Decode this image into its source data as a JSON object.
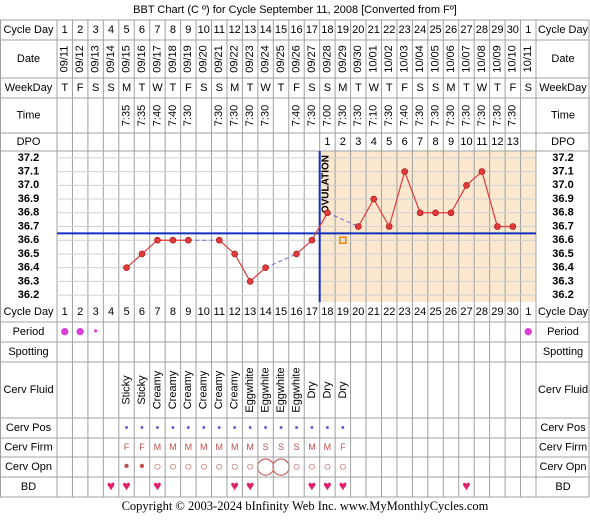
{
  "title": "BBT Chart (C º) for Cycle September 11, 2008  [Converted from Fº]",
  "copyright": "Copyright © 2003-2024 bInfinity Web Inc.     www.MyMonthlyCycles.com",
  "row_labels": {
    "cycle_day": "Cycle Day",
    "date": "Date",
    "weekday": "WeekDay",
    "time": "Time",
    "dpo": "DPO",
    "period": "Period",
    "spotting": "Spotting",
    "cerv_fluid": "Cerv Fluid",
    "cerv_pos": "Cerv Pos",
    "cerv_firm": "Cerv Firm",
    "cerv_opn": "Cerv Opn",
    "bd": "BD"
  },
  "rows": {
    "date": [
      "09/11",
      "09/12",
      "09/13",
      "09/14",
      "09/15",
      "09/16",
      "09/17",
      "09/18",
      "09/19",
      "09/20",
      "09/21",
      "09/22",
      "09/23",
      "09/24",
      "09/25",
      "09/26",
      "09/27",
      "09/28",
      "09/29",
      "09/30",
      "10/01",
      "10/02",
      "10/03",
      "10/04",
      "10/05",
      "10/06",
      "10/07",
      "10/08",
      "10/09",
      "10/10",
      "10/11"
    ],
    "weekday": [
      "T",
      "F",
      "S",
      "S",
      "M",
      "T",
      "W",
      "T",
      "F",
      "S",
      "S",
      "M",
      "T",
      "W",
      "T",
      "F",
      "S",
      "S",
      "M",
      "T",
      "W",
      "T",
      "F",
      "S",
      "S",
      "M",
      "T",
      "W",
      "T",
      "F",
      "S"
    ],
    "time": [
      null,
      null,
      null,
      null,
      "7:35",
      "7:35",
      "7:40",
      "7:40",
      "7:30",
      null,
      "7:30",
      "7:30",
      "7:30",
      "7:30",
      null,
      "7:40",
      "7:30",
      "7:00",
      "7:30",
      "7:30",
      "7:10",
      "7:30",
      "7:40",
      "7:30",
      "7:30",
      "7:30",
      "7:30",
      "7:30",
      "7:30",
      "7:30",
      null
    ],
    "dpo": [
      null,
      null,
      null,
      null,
      null,
      null,
      null,
      null,
      null,
      null,
      null,
      null,
      null,
      null,
      null,
      null,
      null,
      1,
      2,
      3,
      4,
      5,
      6,
      7,
      8,
      9,
      10,
      11,
      12,
      13,
      null
    ],
    "period": [
      "●",
      "●",
      "•",
      null,
      null,
      null,
      null,
      null,
      null,
      null,
      null,
      null,
      null,
      null,
      null,
      null,
      null,
      null,
      null,
      null,
      null,
      null,
      null,
      null,
      null,
      null,
      null,
      null,
      null,
      null,
      "●"
    ],
    "cerv_fluid": [
      null,
      null,
      null,
      null,
      "Sticky",
      "Sticky",
      "Creamy",
      "Creamy",
      "Creamy",
      "Creamy",
      "Creamy",
      "Creamy",
      "Eggwhite",
      "Eggwhite",
      "Eggwhite",
      "Eggwhite",
      "Dry",
      "Dry",
      "Dry",
      null,
      null,
      null,
      null,
      null,
      null,
      null,
      null,
      null,
      null,
      null,
      null
    ],
    "cerv_pos": [
      null,
      null,
      null,
      null,
      "•",
      "•",
      "•",
      "•",
      "•",
      "•",
      "•",
      "•",
      "•",
      "•",
      "•",
      "•",
      "•",
      "•",
      "•",
      null,
      null,
      null,
      null,
      null,
      null,
      null,
      null,
      null,
      null,
      null,
      null
    ],
    "cerv_firm": [
      null,
      null,
      null,
      null,
      "F",
      "F",
      "M",
      "M",
      "M",
      "M",
      "M",
      "M",
      "M",
      "S",
      "S",
      "S",
      "M",
      "M",
      "F",
      null,
      null,
      null,
      null,
      null,
      null,
      null,
      null,
      null,
      null,
      null,
      null
    ],
    "cerv_opn": [
      null,
      null,
      null,
      null,
      "•",
      "•",
      "○",
      "○",
      "○",
      "○",
      "○",
      "○",
      "○",
      "◯",
      "◯",
      "○",
      "○",
      "○",
      "○",
      null,
      null,
      null,
      null,
      null,
      null,
      null,
      null,
      null,
      null,
      null,
      null
    ],
    "bd": [
      null,
      null,
      null,
      "♥",
      "♥",
      null,
      "♥",
      null,
      null,
      null,
      null,
      "♥",
      "♥",
      null,
      null,
      null,
      "♥",
      "♥",
      "♥",
      null,
      null,
      null,
      null,
      null,
      null,
      null,
      "♥",
      null,
      null,
      null,
      null
    ]
  },
  "chart_data": {
    "type": "line",
    "categories": [
      1,
      2,
      3,
      4,
      5,
      6,
      7,
      8,
      9,
      10,
      11,
      12,
      13,
      14,
      15,
      16,
      17,
      18,
      19,
      20,
      21,
      22,
      23,
      24,
      25,
      26,
      27,
      28,
      29,
      30,
      1
    ],
    "series": [
      {
        "color": "#e03a3a",
        "values": [
          null,
          null,
          null,
          null,
          36.4,
          36.5,
          36.6,
          36.6,
          36.6,
          null,
          36.6,
          36.5,
          36.3,
          36.4,
          null,
          36.5,
          36.6,
          36.8,
          null,
          36.7,
          36.9,
          36.7,
          37.1,
          36.8,
          36.8,
          36.8,
          37.0,
          37.1,
          36.7,
          36.7,
          null
        ]
      },
      {
        "color": "#e07a00",
        "marker": "square",
        "values": [
          null,
          null,
          null,
          null,
          null,
          null,
          null,
          null,
          null,
          null,
          null,
          null,
          null,
          null,
          null,
          null,
          null,
          null,
          36.6,
          null,
          null,
          null,
          null,
          null,
          null,
          null,
          null,
          null,
          null,
          null,
          null
        ]
      }
    ],
    "ylim": [
      36.15,
      37.25
    ],
    "yticks": [
      37.2,
      37.1,
      {
        "value": 37,
        "label": "37.0"
      },
      36.9,
      36.8,
      36.7,
      36.6,
      36.5,
      36.4,
      36.3,
      36.2
    ],
    "coverline": 36.65,
    "coverline_color": "#1030c0",
    "ovulation_day": 17,
    "ovulation_label": "OVULATION",
    "post_ovulation_fill": "#fbe8cf",
    "grid": true
  }
}
